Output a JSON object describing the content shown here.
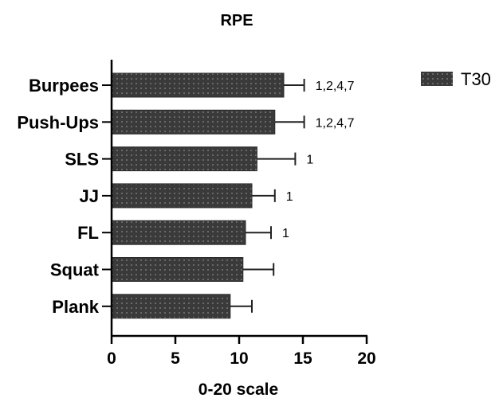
{
  "chart_data": {
    "type": "bar",
    "orientation": "horizontal",
    "title": "RPE",
    "xlabel": "0-20 scale",
    "ylabel": "",
    "xlim": [
      0,
      20
    ],
    "xticks": [
      0,
      5,
      10,
      15,
      20
    ],
    "categories": [
      "Burpees",
      "Push-Ups",
      "SLS",
      "JJ",
      "FL",
      "Squat",
      "Plank"
    ],
    "series": [
      {
        "name": "T30",
        "values": [
          13.5,
          12.8,
          11.4,
          11.0,
          10.5,
          10.3,
          9.3
        ],
        "error": [
          1.6,
          2.3,
          3.0,
          1.8,
          2.0,
          2.4,
          1.7
        ]
      }
    ],
    "annotations": [
      "1,2,4,7",
      "1,2,4,7",
      "1",
      "1",
      "1",
      "",
      ""
    ],
    "legend_position": "top-right",
    "bar_color": "#3a3a3a",
    "bar_pattern": "dotted"
  }
}
